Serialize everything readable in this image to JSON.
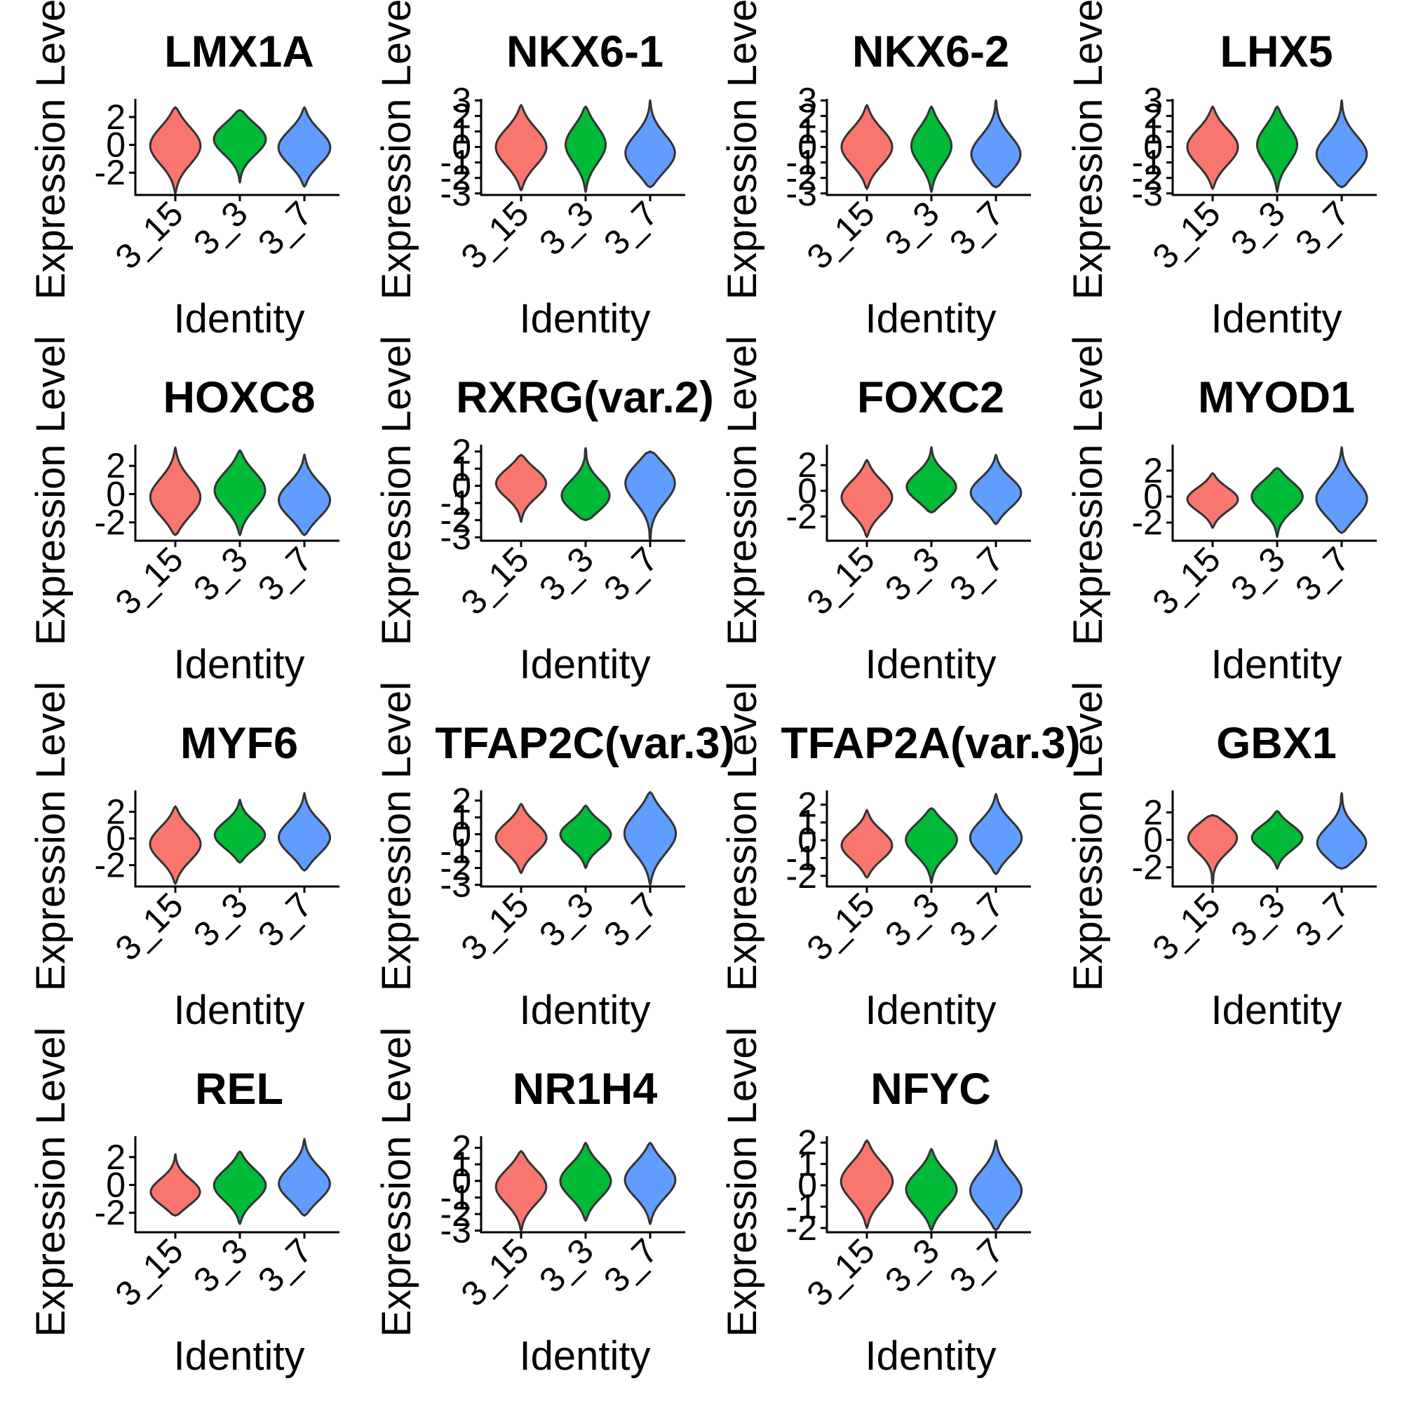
{
  "figure": {
    "colors": {
      "3_15": "#F8766D",
      "3_3": "#00BA38",
      "3_7": "#619CFF"
    },
    "outline_color": "#333333",
    "axis_color": "#000000"
  },
  "chart_data": [
    {
      "type": "violin",
      "title": "LMX1A",
      "xlabel": "Identity",
      "ylabel": "Expression Level",
      "categories": [
        "3_15",
        "3_3",
        "3_7"
      ],
      "yticks": [
        -2,
        0,
        2
      ],
      "ylim": [
        -3.6,
        3.3
      ],
      "violins": [
        {
          "min": -3.5,
          "max": 2.7,
          "mode": 0.0,
          "width": 0.88
        },
        {
          "min": -2.7,
          "max": 2.5,
          "mode": 0.5,
          "width": 0.92
        },
        {
          "min": -3.0,
          "max": 2.7,
          "mode": -0.2,
          "width": 0.9
        }
      ]
    },
    {
      "type": "violin",
      "title": "NKX6-1",
      "xlabel": "Identity",
      "ylabel": "Expression Level",
      "categories": [
        "3_15",
        "3_3",
        "3_7"
      ],
      "yticks": [
        -3,
        -2,
        -1,
        0,
        1,
        2,
        3
      ],
      "ylim": [
        -3.1,
        3.1
      ],
      "violins": [
        {
          "min": -2.8,
          "max": 2.7,
          "mode": 0.0,
          "width": 0.88
        },
        {
          "min": -2.9,
          "max": 2.6,
          "mode": 0.2,
          "width": 0.7
        },
        {
          "min": -2.6,
          "max": 3.0,
          "mode": -0.5,
          "width": 0.88
        }
      ]
    },
    {
      "type": "violin",
      "title": "NKX6-2",
      "xlabel": "Identity",
      "ylabel": "Expression Level",
      "categories": [
        "3_15",
        "3_3",
        "3_7"
      ],
      "yticks": [
        -3,
        -2,
        -1,
        0,
        1,
        2,
        3
      ],
      "ylim": [
        -3.1,
        3.1
      ],
      "violins": [
        {
          "min": -2.7,
          "max": 2.7,
          "mode": 0.0,
          "width": 0.88
        },
        {
          "min": -2.9,
          "max": 2.6,
          "mode": 0.1,
          "width": 0.7
        },
        {
          "min": -2.6,
          "max": 3.0,
          "mode": -0.6,
          "width": 0.88
        }
      ]
    },
    {
      "type": "violin",
      "title": "LHX5",
      "xlabel": "Identity",
      "ylabel": "Expression Level",
      "categories": [
        "3_15",
        "3_3",
        "3_7"
      ],
      "yticks": [
        -3,
        -2,
        -1,
        0,
        1,
        2,
        3
      ],
      "ylim": [
        -3.1,
        3.1
      ],
      "violins": [
        {
          "min": -2.7,
          "max": 2.6,
          "mode": 0.0,
          "width": 0.88
        },
        {
          "min": -2.9,
          "max": 2.6,
          "mode": 0.2,
          "width": 0.7
        },
        {
          "min": -2.6,
          "max": 3.0,
          "mode": -0.6,
          "width": 0.9
        }
      ]
    },
    {
      "type": "violin",
      "title": "HOXC8",
      "xlabel": "Identity",
      "ylabel": "Expression Level",
      "categories": [
        "3_15",
        "3_3",
        "3_7"
      ],
      "yticks": [
        -2,
        0,
        2
      ],
      "ylim": [
        -3.3,
        3.5
      ],
      "violins": [
        {
          "min": -2.9,
          "max": 3.3,
          "mode": -0.3,
          "width": 0.88
        },
        {
          "min": -2.9,
          "max": 3.1,
          "mode": 0.3,
          "width": 0.88
        },
        {
          "min": -2.9,
          "max": 2.8,
          "mode": -0.5,
          "width": 0.9
        }
      ]
    },
    {
      "type": "violin",
      "title": "RXRG(var.2)",
      "xlabel": "Identity",
      "ylabel": "Expression Level",
      "categories": [
        "3_15",
        "3_3",
        "3_7"
      ],
      "yticks": [
        -3,
        -2,
        -1,
        0,
        1,
        2
      ],
      "ylim": [
        -3.2,
        2.4
      ],
      "violins": [
        {
          "min": -2.1,
          "max": 1.8,
          "mode": 0.2,
          "width": 0.88
        },
        {
          "min": -2.0,
          "max": 2.2,
          "mode": -0.7,
          "width": 0.88
        },
        {
          "min": -3.2,
          "max": 2.0,
          "mode": 0.3,
          "width": 0.9
        }
      ]
    },
    {
      "type": "violin",
      "title": "FOXC2",
      "xlabel": "Identity",
      "ylabel": "Expression Level",
      "categories": [
        "3_15",
        "3_3",
        "3_7"
      ],
      "yticks": [
        -2,
        0,
        2
      ],
      "ylim": [
        -3.9,
        3.6
      ],
      "violins": [
        {
          "min": -3.6,
          "max": 2.4,
          "mode": -0.5,
          "width": 0.88
        },
        {
          "min": -1.7,
          "max": 3.4,
          "mode": 0.2,
          "width": 0.88
        },
        {
          "min": -2.6,
          "max": 2.8,
          "mode": -0.2,
          "width": 0.88
        }
      ]
    },
    {
      "type": "violin",
      "title": "MYOD1",
      "xlabel": "Identity",
      "ylabel": "Expression Level",
      "categories": [
        "3_15",
        "3_3",
        "3_7"
      ],
      "yticks": [
        -2,
        0,
        2
      ],
      "ylim": [
        -3.4,
        4.0
      ],
      "violins": [
        {
          "min": -2.4,
          "max": 1.8,
          "mode": -0.2,
          "width": 0.88
        },
        {
          "min": -3.1,
          "max": 2.2,
          "mode": 0.1,
          "width": 0.9
        },
        {
          "min": -2.8,
          "max": 3.8,
          "mode": -0.3,
          "width": 0.9
        }
      ]
    },
    {
      "type": "violin",
      "title": "MYF6",
      "xlabel": "Identity",
      "ylabel": "Expression Level",
      "categories": [
        "3_15",
        "3_3",
        "3_7"
      ],
      "yticks": [
        -2,
        0,
        2
      ],
      "ylim": [
        -3.6,
        3.6
      ],
      "violins": [
        {
          "min": -3.4,
          "max": 2.4,
          "mode": -0.4,
          "width": 0.88
        },
        {
          "min": -1.8,
          "max": 2.9,
          "mode": 0.2,
          "width": 0.88
        },
        {
          "min": -2.4,
          "max": 3.4,
          "mode": 0.0,
          "width": 0.9
        }
      ]
    },
    {
      "type": "violin",
      "title": "TFAP2C(var.3)",
      "xlabel": "Identity",
      "ylabel": "Expression Level",
      "categories": [
        "3_15",
        "3_3",
        "3_7"
      ],
      "yticks": [
        -3,
        -2,
        -1,
        0,
        1,
        2
      ],
      "ylim": [
        -3.1,
        2.6
      ],
      "violins": [
        {
          "min": -2.3,
          "max": 1.8,
          "mode": -0.2,
          "width": 0.88
        },
        {
          "min": -2.0,
          "max": 1.7,
          "mode": 0.0,
          "width": 0.88
        },
        {
          "min": -3.0,
          "max": 2.5,
          "mode": 0.1,
          "width": 0.9
        }
      ]
    },
    {
      "type": "violin",
      "title": "TFAP2A(var.3)",
      "xlabel": "Identity",
      "ylabel": "Expression Level",
      "categories": [
        "3_15",
        "3_3",
        "3_7"
      ],
      "yticks": [
        -2,
        -1,
        0,
        1,
        2
      ],
      "ylim": [
        -2.6,
        2.8
      ],
      "violins": [
        {
          "min": -2.1,
          "max": 1.7,
          "mode": -0.3,
          "width": 0.88
        },
        {
          "min": -2.4,
          "max": 1.8,
          "mode": 0.1,
          "width": 0.9
        },
        {
          "min": -1.9,
          "max": 2.6,
          "mode": 0.1,
          "width": 0.9
        }
      ]
    },
    {
      "type": "violin",
      "title": "GBX1",
      "xlabel": "Identity",
      "ylabel": "Expression Level",
      "categories": [
        "3_15",
        "3_3",
        "3_7"
      ],
      "yticks": [
        -2,
        0,
        2
      ],
      "ylim": [
        -3.4,
        3.6
      ],
      "violins": [
        {
          "min": -3.2,
          "max": 1.8,
          "mode": 0.3,
          "width": 0.9
        },
        {
          "min": -2.1,
          "max": 2.1,
          "mode": 0.2,
          "width": 0.88
        },
        {
          "min": -2.1,
          "max": 3.4,
          "mode": -0.4,
          "width": 0.9
        }
      ]
    },
    {
      "type": "violin",
      "title": "REL",
      "xlabel": "Identity",
      "ylabel": "Expression Level",
      "categories": [
        "3_15",
        "3_3",
        "3_7"
      ],
      "yticks": [
        -2,
        0,
        2
      ],
      "ylim": [
        -3.4,
        3.5
      ],
      "violins": [
        {
          "min": -2.2,
          "max": 2.2,
          "mode": -0.6,
          "width": 0.88
        },
        {
          "min": -2.8,
          "max": 2.4,
          "mode": 0.0,
          "width": 0.9
        },
        {
          "min": -2.2,
          "max": 3.3,
          "mode": 0.0,
          "width": 0.9
        }
      ]
    },
    {
      "type": "violin",
      "title": "NR1H4",
      "xlabel": "Identity",
      "ylabel": "Expression Level",
      "categories": [
        "3_15",
        "3_3",
        "3_7"
      ],
      "yticks": [
        -3,
        -2,
        -1,
        0,
        1,
        2
      ],
      "ylim": [
        -3.1,
        2.7
      ],
      "violins": [
        {
          "min": -3.0,
          "max": 1.8,
          "mode": -0.3,
          "width": 0.88
        },
        {
          "min": -2.4,
          "max": 2.3,
          "mode": 0.0,
          "width": 0.88
        },
        {
          "min": -2.6,
          "max": 2.3,
          "mode": 0.1,
          "width": 0.88
        }
      ]
    },
    {
      "type": "violin",
      "title": "NFYC",
      "xlabel": "Identity",
      "ylabel": "Expression Level",
      "categories": [
        "3_15",
        "3_3",
        "3_7"
      ],
      "yticks": [
        -2,
        -1,
        0,
        1,
        2
      ],
      "ylim": [
        -2.2,
        2.3
      ],
      "violins": [
        {
          "min": -2.0,
          "max": 2.1,
          "mode": 0.2,
          "width": 0.9
        },
        {
          "min": -2.1,
          "max": 1.7,
          "mode": -0.2,
          "width": 0.88
        },
        {
          "min": -2.1,
          "max": 2.1,
          "mode": -0.3,
          "width": 0.9
        }
      ]
    }
  ]
}
